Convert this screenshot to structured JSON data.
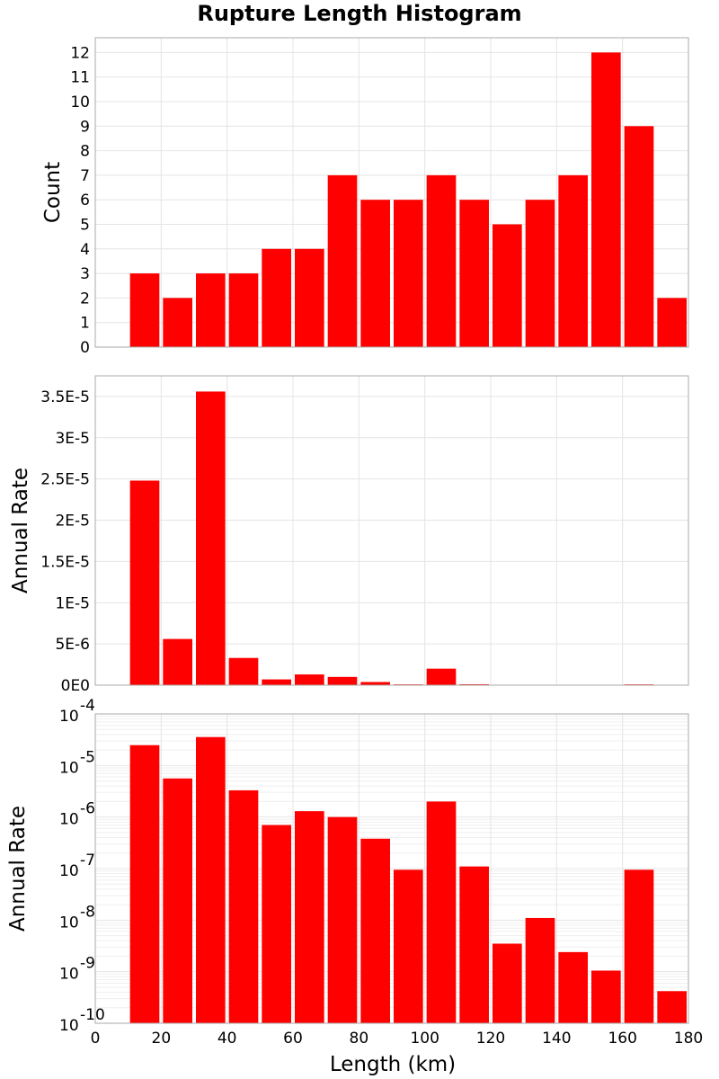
{
  "chart_data": {
    "type": "bar",
    "title": "Rupture Length Histogram",
    "bar_color": "#ff0000",
    "bin_width": 10,
    "xlabel": "Length (km)",
    "xlim": [
      0,
      180
    ],
    "xticks": [
      "0",
      "20",
      "40",
      "60",
      "80",
      "100",
      "120",
      "140",
      "160",
      "180"
    ],
    "panels": [
      {
        "name": "count",
        "ylabel": "Count",
        "scale": "linear",
        "ylim": [
          0,
          12.6
        ],
        "yticks": [
          0,
          1,
          2,
          3,
          4,
          5,
          6,
          7,
          8,
          9,
          10,
          11,
          12
        ],
        "ytick_labels": [
          "0",
          "1",
          "2",
          "3",
          "4",
          "5",
          "6",
          "7",
          "8",
          "9",
          "10",
          "11",
          "12"
        ],
        "x": [
          15,
          25,
          35,
          45,
          55,
          65,
          75,
          85,
          95,
          105,
          115,
          125,
          135,
          145,
          155,
          165,
          175
        ],
        "values": [
          3,
          2,
          3,
          3,
          4,
          4,
          7,
          6,
          6,
          7,
          6,
          5,
          6,
          7,
          12,
          9,
          2
        ]
      },
      {
        "name": "annual-rate-linear",
        "ylabel": "Annual Rate",
        "scale": "linear",
        "ylim": [
          0,
          3.75e-05
        ],
        "yticks": [
          0,
          5e-06,
          1e-05,
          1.5e-05,
          2e-05,
          2.5e-05,
          3e-05,
          3.5e-05
        ],
        "ytick_labels": [
          "0E0",
          "5E-6",
          "1E-5",
          "1.5E-5",
          "2E-5",
          "2.5E-5",
          "3E-5",
          "3.5E-5"
        ],
        "x": [
          15,
          25,
          35,
          45,
          55,
          65,
          75,
          85,
          95,
          105,
          115,
          125,
          135,
          145,
          155,
          165,
          175
        ],
        "values": [
          2.48e-05,
          5.6e-06,
          3.56e-05,
          3.3e-06,
          7e-07,
          1.3e-06,
          1e-06,
          3.8e-07,
          9.5e-08,
          2e-06,
          1.1e-07,
          3.5e-09,
          1.1e-08,
          2.4e-09,
          1.05e-09,
          9.5e-08,
          4.2e-10
        ]
      },
      {
        "name": "annual-rate-log",
        "ylabel": "Annual Rate",
        "scale": "log",
        "ylim": [
          1e-10,
          0.0001
        ],
        "yticks": [
          1e-10,
          1e-09,
          1e-08,
          1e-07,
          1e-06,
          1e-05,
          0.0001
        ],
        "ytick_base": "10",
        "ytick_exponents": [
          "-10",
          "-9",
          "-8",
          "-7",
          "-6",
          "-5",
          "-4"
        ],
        "x": [
          15,
          25,
          35,
          45,
          55,
          65,
          75,
          85,
          95,
          105,
          115,
          125,
          135,
          145,
          155,
          165,
          175
        ],
        "values": [
          2.48e-05,
          5.6e-06,
          3.56e-05,
          3.3e-06,
          7e-07,
          1.3e-06,
          1e-06,
          3.8e-07,
          9.5e-08,
          2e-06,
          1.1e-07,
          3.5e-09,
          1.1e-08,
          2.4e-09,
          1.05e-09,
          9.5e-08,
          4.2e-10
        ]
      }
    ]
  }
}
